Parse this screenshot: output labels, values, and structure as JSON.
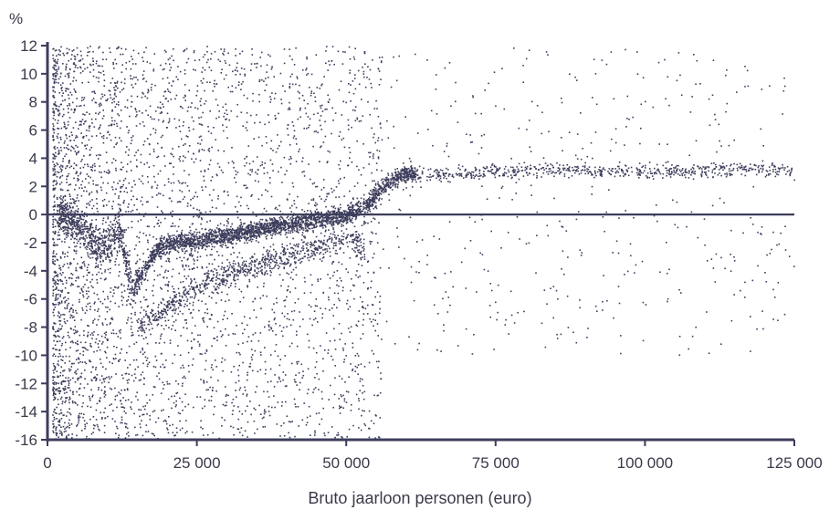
{
  "chart_data": {
    "type": "scatter",
    "title": "",
    "ylabel": "%",
    "xlabel": "Bruto jaarloon personen (euro)",
    "xlim": [
      0,
      125000
    ],
    "ylim": [
      -16,
      12
    ],
    "xticks": [
      0,
      25000,
      50000,
      75000,
      100000,
      125000
    ],
    "xtick_labels": [
      "0",
      "25 000",
      "50 000",
      "75 000",
      "100 000",
      "125 000"
    ],
    "yticks": [
      12,
      10,
      8,
      6,
      4,
      2,
      0,
      -2,
      -4,
      -6,
      -8,
      -10,
      -12,
      -14,
      -16
    ],
    "ytick_labels": [
      "12",
      "10",
      "8",
      "6",
      "4",
      "2",
      "0",
      "-2",
      "-4",
      "-6",
      "-8",
      "-10",
      "-12",
      "-14",
      "-16"
    ],
    "grid": false,
    "zero_line": true,
    "marker_color": "#3d3d5c",
    "axis_color": "#3d3d5c",
    "series": [
      {
        "trend": {
          "x": [
            3000,
            6000,
            8000,
            10000,
            12000,
            14000,
            16000,
            18000,
            20000,
            25000,
            30000,
            35000,
            40000,
            45000,
            50000,
            52000,
            54000,
            56000,
            58000,
            60000,
            65000,
            70000,
            80000,
            90000,
            100000,
            110000,
            120000,
            125000
          ],
          "y": [
            0.0,
            -1.0,
            -2.2,
            -2.0,
            -1.0,
            -5.5,
            -4.0,
            -2.5,
            -2.0,
            -1.8,
            -1.5,
            -1.0,
            -0.6,
            -0.3,
            0.0,
            0.4,
            1.0,
            2.0,
            2.6,
            3.0,
            2.8,
            3.0,
            3.2,
            3.2,
            3.1,
            3.2,
            3.3,
            3.2
          ]
        },
        "lower_band": {
          "x": [
            15000,
            20000,
            25000,
            30000,
            35000,
            40000,
            45000,
            50000,
            53000
          ],
          "y": [
            -8.0,
            -6.5,
            -5.0,
            -4.2,
            -3.5,
            -2.8,
            -2.2,
            -1.5,
            -2.5
          ]
        }
      }
    ]
  }
}
